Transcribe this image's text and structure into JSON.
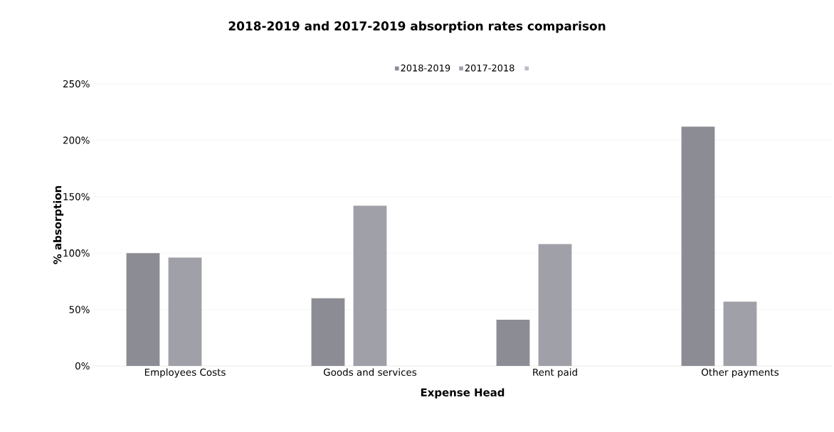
{
  "chart_data": {
    "type": "bar",
    "title": "2018-2019 and 2017-2019 absorption rates comparison",
    "xlabel": "Expense Head",
    "ylabel": "% absorption",
    "categories": [
      "Employees Costs",
      "Goods and services",
      "Rent paid",
      "Other payments"
    ],
    "series": [
      {
        "name": "2018-2019",
        "color": "#8c8c94",
        "values": [
          100,
          60,
          41,
          212
        ]
      },
      {
        "name": "2017-2018",
        "color": "#a0a0a8",
        "values": [
          96,
          142,
          108,
          57
        ]
      },
      {
        "color": "#bdbdca",
        "values": [
          null,
          null,
          null,
          null
        ]
      }
    ],
    "ylim": [
      0,
      250
    ],
    "yticks": [
      {
        "value": 0,
        "label": "0%"
      },
      {
        "value": 50,
        "label": "50%"
      },
      {
        "value": 100,
        "label": "100%"
      },
      {
        "value": 150,
        "label": "150%"
      },
      {
        "value": 200,
        "label": "200%"
      },
      {
        "value": 250,
        "label": "250%"
      }
    ],
    "grid": "y",
    "legend": "top"
  }
}
